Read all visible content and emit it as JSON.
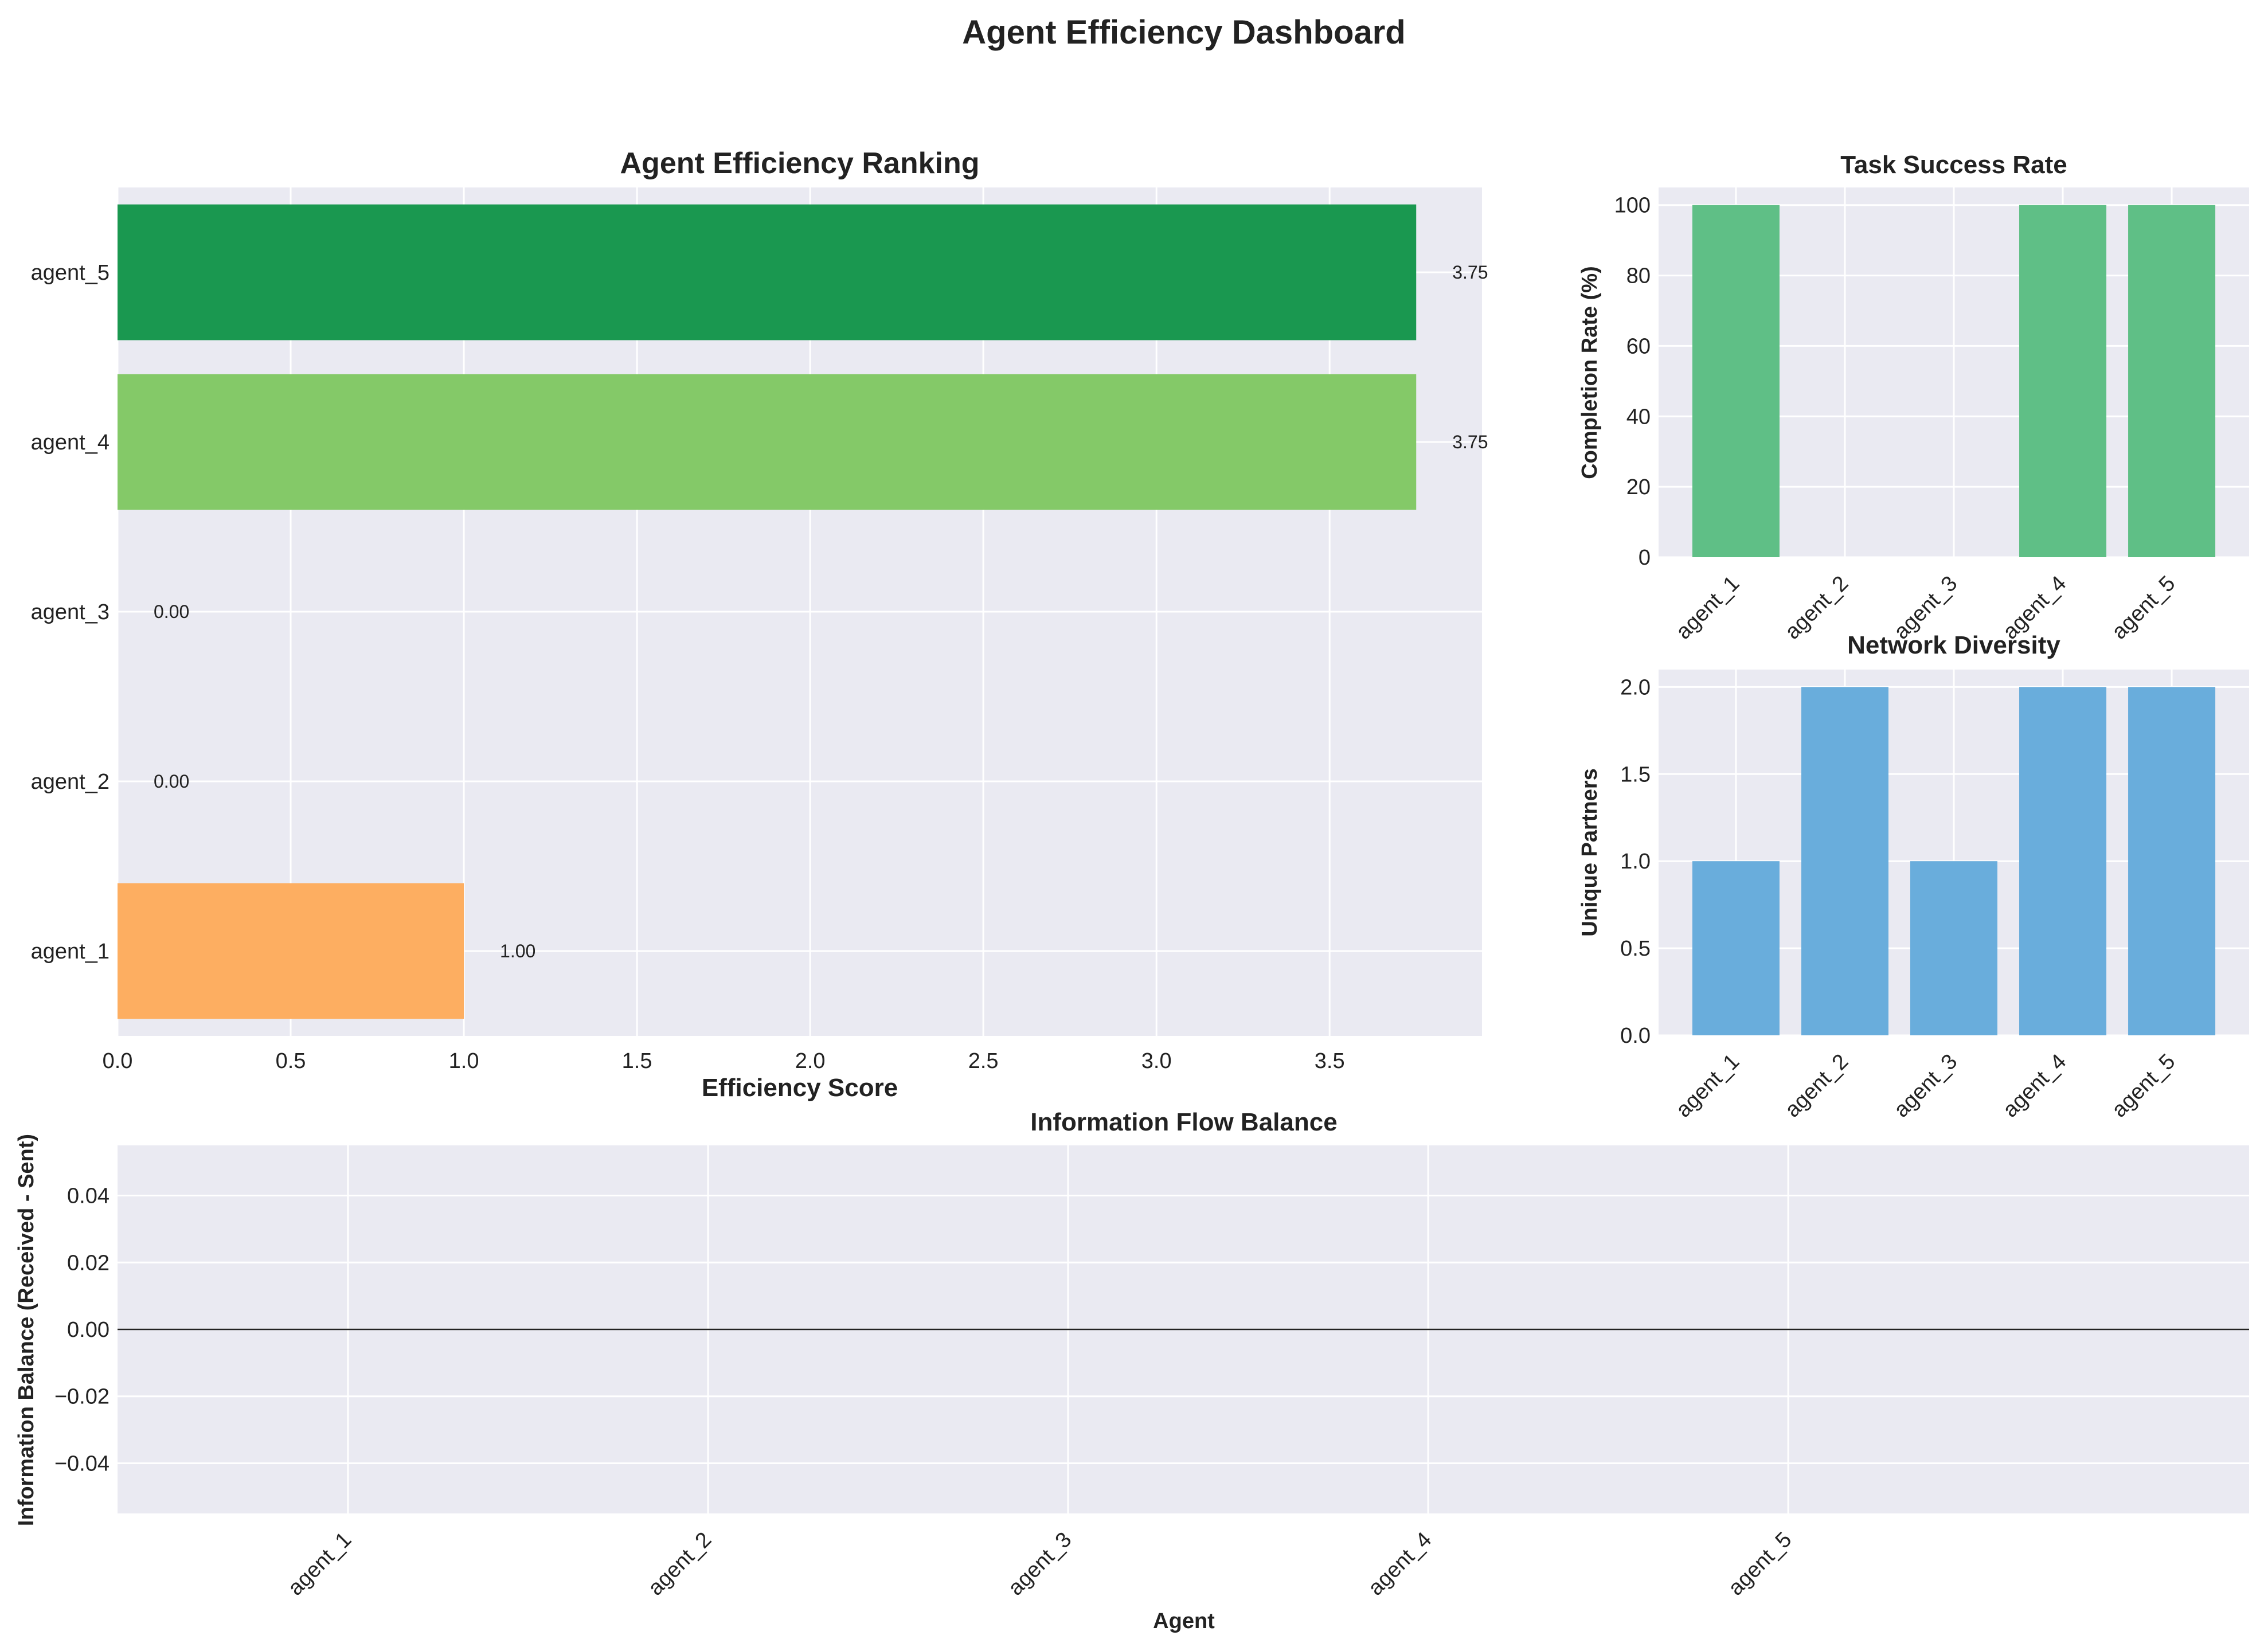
{
  "figure_title": "Agent Efficiency Dashboard",
  "chart_data": [
    {
      "id": "efficiency",
      "type": "bar",
      "orientation": "horizontal",
      "title": "Agent Efficiency Ranking",
      "xlabel": "Efficiency Score",
      "ylabel": "",
      "categories": [
        "agent_1",
        "agent_2",
        "agent_3",
        "agent_4",
        "agent_5"
      ],
      "values": [
        1.0,
        0.0,
        0.0,
        3.75,
        3.75
      ],
      "value_labels": [
        "1.00",
        "0.00",
        "0.00",
        "3.75",
        "3.75"
      ],
      "colors": [
        "#fdae61",
        "#fee08b",
        "#ffffbf",
        "#84c968",
        "#1a9850"
      ],
      "xlim": [
        0,
        3.94
      ],
      "xticks": [
        "0.0",
        "0.5",
        "1.0",
        "1.5",
        "2.0",
        "2.5",
        "3.0",
        "3.5"
      ],
      "grid": true
    },
    {
      "id": "success",
      "type": "bar",
      "title": "Task Success Rate",
      "xlabel": "",
      "ylabel": "Completion Rate (%)",
      "categories": [
        "agent_1",
        "agent_2",
        "agent_3",
        "agent_4",
        "agent_5"
      ],
      "values": [
        100,
        0,
        0,
        100,
        100
      ],
      "color": "#5fbf86",
      "ylim": [
        0,
        105
      ],
      "yticks": [
        "0",
        "20",
        "40",
        "60",
        "80",
        "100"
      ],
      "grid": true
    },
    {
      "id": "diversity",
      "type": "bar",
      "title": "Network Diversity",
      "xlabel": "",
      "ylabel": "Unique Partners",
      "categories": [
        "agent_1",
        "agent_2",
        "agent_3",
        "agent_4",
        "agent_5"
      ],
      "values": [
        1,
        2,
        1,
        2,
        2
      ],
      "color": "#69addc",
      "ylim": [
        0,
        2.1
      ],
      "yticks": [
        "0.0",
        "0.5",
        "1.0",
        "1.5",
        "2.0"
      ],
      "grid": true
    },
    {
      "id": "flow",
      "type": "bar",
      "title": "Information Flow Balance",
      "xlabel": "Agent",
      "ylabel": "Information Balance (Received - Sent)",
      "categories": [
        "agent_1",
        "agent_2",
        "agent_3",
        "agent_4",
        "agent_5"
      ],
      "values": [
        0,
        0,
        0,
        0,
        0
      ],
      "ylim": [
        -0.055,
        0.055
      ],
      "yticks": [
        "−0.04",
        "−0.02",
        "0.00",
        "0.02",
        "0.04"
      ],
      "zero_line": true,
      "grid": true
    }
  ]
}
